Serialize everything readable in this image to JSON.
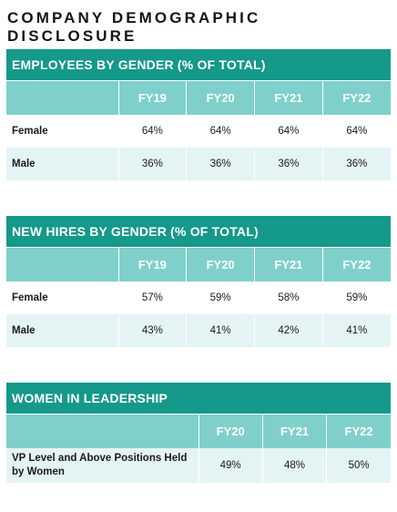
{
  "title": "COMPANY DEMOGRAPHIC DISCLOSURE",
  "employees": {
    "heading": "EMPLOYEES BY GENDER (% OF TOTAL)",
    "columns": [
      "FY19",
      "FY20",
      "FY21",
      "FY22"
    ],
    "rows": [
      {
        "label": "Female",
        "values": [
          "64%",
          "64%",
          "64%",
          "64%"
        ]
      },
      {
        "label": "Male",
        "values": [
          "36%",
          "36%",
          "36%",
          "36%"
        ]
      }
    ]
  },
  "new_hires": {
    "heading": "NEW HIRES BY GENDER (% OF TOTAL)",
    "columns": [
      "FY19",
      "FY20",
      "FY21",
      "FY22"
    ],
    "rows": [
      {
        "label": "Female",
        "values": [
          "57%",
          "59%",
          "58%",
          "59%"
        ]
      },
      {
        "label": "Male",
        "values": [
          "43%",
          "41%",
          "42%",
          "41%"
        ]
      }
    ]
  },
  "leadership": {
    "heading": "WOMEN IN LEADERSHIP",
    "columns": [
      "FY20",
      "FY21",
      "FY22"
    ],
    "rows": [
      {
        "label": "VP Level and Above Positions Held by Women",
        "values": [
          "49%",
          "48%",
          "50%"
        ]
      }
    ]
  },
  "colors": {
    "header_teal": "#14998a",
    "column_header_teal": "#7fd0cb",
    "row_tint": "#e4f4f4"
  }
}
